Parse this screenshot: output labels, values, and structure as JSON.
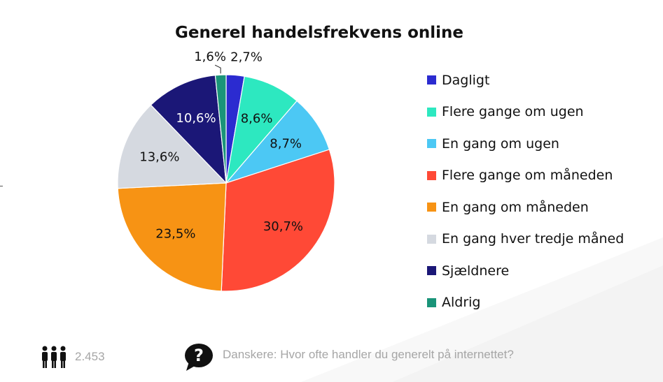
{
  "chart_data": {
    "type": "pie",
    "title": "Generel handelsfrekvens online",
    "slices": [
      {
        "label": "Dagligt",
        "value": 2.7,
        "display": "2,7%",
        "color": "#2b2bd0"
      },
      {
        "label": "Flere gange om ugen",
        "value": 8.6,
        "display": "8,6%",
        "color": "#2de8c0"
      },
      {
        "label": "En gang om ugen",
        "value": 8.7,
        "display": "8,7%",
        "color": "#4cc8f4"
      },
      {
        "label": "Flere gange om måneden",
        "value": 30.7,
        "display": "30,7%",
        "color": "#ff4936"
      },
      {
        "label": "En gang om måneden",
        "value": 23.5,
        "display": "23,5%",
        "color": "#f79314"
      },
      {
        "label": "En gang hver tredje måned",
        "value": 13.6,
        "display": "13,6%",
        "color": "#d5d9e0"
      },
      {
        "label": "Sjældnere",
        "value": 10.6,
        "display": "10,6%",
        "color": "#1b1777"
      },
      {
        "label": "Aldrig",
        "value": 1.6,
        "display": "1,6%",
        "color": "#1a9479"
      }
    ],
    "legend_position": "right"
  },
  "footer": {
    "respondents": "2.453",
    "question": "Danskere: Hvor ofte handler du generelt på internettet?",
    "respondents_icon": "people-icon",
    "question_icon": "question-bubble-icon"
  }
}
